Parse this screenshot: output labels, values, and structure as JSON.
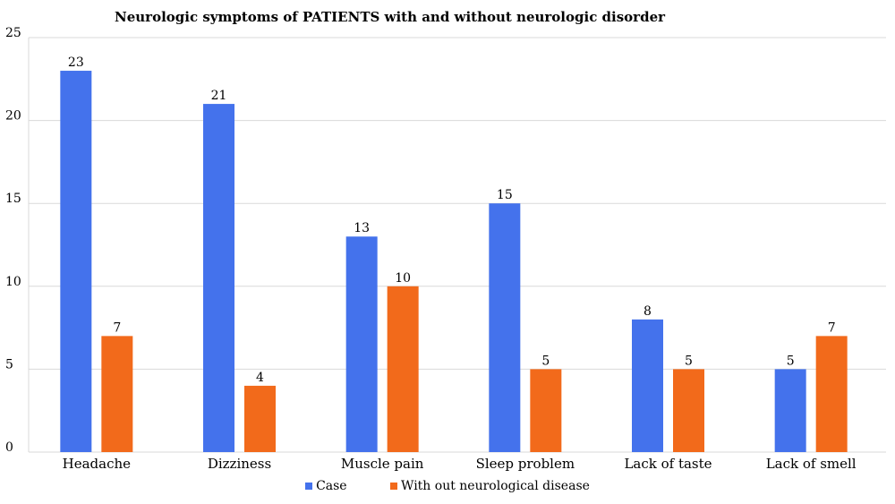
{
  "chart_data": {
    "type": "bar",
    "title": "Neurologic symptoms of PATIENTS with and without neurologic disorder",
    "categories": [
      "Headache",
      "Dizziness",
      "Muscle pain",
      "Sleep problem",
      "Lack of taste",
      "Lack of smell"
    ],
    "series": [
      {
        "name": "Case",
        "color": "#4472ec",
        "values": [
          23,
          21,
          13,
          15,
          8,
          5
        ]
      },
      {
        "name": "With out neurological disease",
        "color": "#f26a1b",
        "values": [
          7,
          4,
          10,
          5,
          5,
          7
        ]
      }
    ],
    "xlabel": "",
    "ylabel": "",
    "ylim": [
      0,
      25
    ],
    "yticks": [
      0,
      5,
      10,
      15,
      20,
      25
    ],
    "grid": true,
    "legend_position": "bottom"
  }
}
